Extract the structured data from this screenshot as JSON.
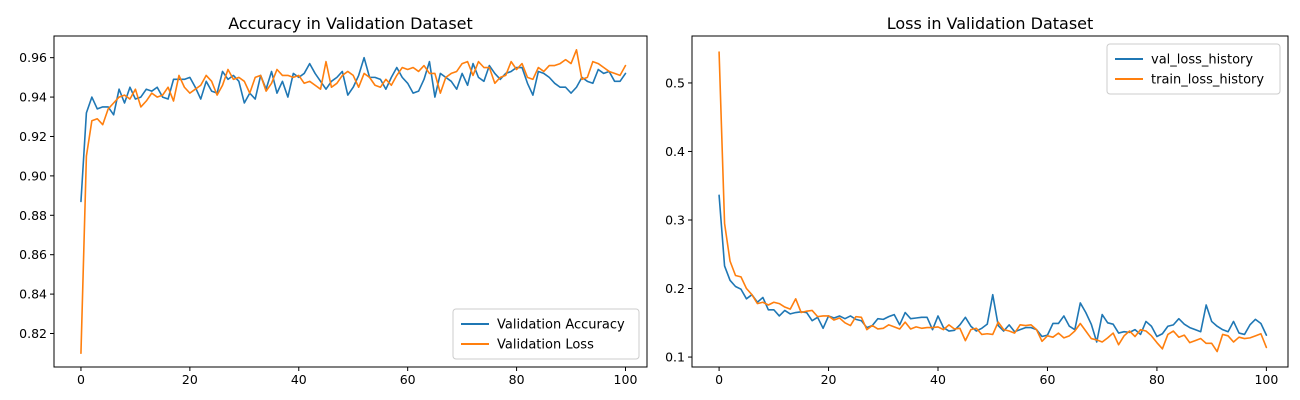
{
  "chart_data": [
    {
      "type": "line",
      "title": "Accuracy in Validation Dataset",
      "xlabel": "",
      "ylabel": "",
      "xlim": [
        -4.95,
        103.95
      ],
      "ylim": [
        0.803,
        0.971
      ],
      "xticks": [
        0,
        20,
        40,
        60,
        80,
        100
      ],
      "yticks": [
        0.82,
        0.84,
        0.86,
        0.88,
        0.9,
        0.92,
        0.94,
        0.96
      ],
      "ytick_labels": [
        "0.82",
        "0.84",
        "0.86",
        "0.88",
        "0.90",
        "0.92",
        "0.94",
        "0.96"
      ],
      "grid": false,
      "legend": "lower-right",
      "series": [
        {
          "name": "Validation Accuracy",
          "color": "#1f77b4",
          "values": [
            0.887,
            0.932,
            0.94,
            0.934,
            0.935,
            0.935,
            0.931,
            0.944,
            0.937,
            0.945,
            0.939,
            0.94,
            0.944,
            0.943,
            0.945,
            0.94,
            0.939,
            0.949,
            0.949,
            0.949,
            0.95,
            0.945,
            0.939,
            0.948,
            0.943,
            0.942,
            0.953,
            0.949,
            0.951,
            0.948,
            0.937,
            0.942,
            0.939,
            0.951,
            0.944,
            0.953,
            0.942,
            0.948,
            0.94,
            0.952,
            0.95,
            0.952,
            0.957,
            0.952,
            0.948,
            0.944,
            0.948,
            0.95,
            0.953,
            0.941,
            0.945,
            0.951,
            0.96,
            0.95,
            0.95,
            0.949,
            0.944,
            0.95,
            0.955,
            0.95,
            0.947,
            0.942,
            0.943,
            0.949,
            0.958,
            0.94,
            0.952,
            0.95,
            0.948,
            0.944,
            0.952,
            0.946,
            0.957,
            0.95,
            0.948,
            0.956,
            0.952,
            0.949,
            0.952,
            0.953,
            0.955,
            0.955,
            0.947,
            0.941,
            0.953,
            0.952,
            0.95,
            0.947,
            0.945,
            0.945,
            0.942,
            0.945,
            0.95,
            0.948,
            0.947,
            0.954,
            0.952,
            0.953,
            0.948,
            0.948,
            0.952
          ]
        },
        {
          "name": "Validation Loss",
          "color": "#ff7f0e",
          "values": [
            0.81,
            0.91,
            0.928,
            0.929,
            0.926,
            0.934,
            0.937,
            0.94,
            0.941,
            0.939,
            0.944,
            0.935,
            0.938,
            0.942,
            0.94,
            0.941,
            0.945,
            0.938,
            0.951,
            0.945,
            0.942,
            0.944,
            0.946,
            0.951,
            0.948,
            0.941,
            0.946,
            0.954,
            0.949,
            0.95,
            0.948,
            0.942,
            0.95,
            0.951,
            0.943,
            0.947,
            0.954,
            0.951,
            0.951,
            0.95,
            0.951,
            0.947,
            0.948,
            0.946,
            0.944,
            0.958,
            0.945,
            0.947,
            0.951,
            0.953,
            0.951,
            0.945,
            0.952,
            0.95,
            0.946,
            0.945,
            0.949,
            0.946,
            0.951,
            0.955,
            0.954,
            0.955,
            0.953,
            0.956,
            0.952,
            0.952,
            0.942,
            0.95,
            0.952,
            0.953,
            0.957,
            0.958,
            0.951,
            0.958,
            0.955,
            0.955,
            0.947,
            0.95,
            0.951,
            0.958,
            0.954,
            0.957,
            0.95,
            0.949,
            0.955,
            0.953,
            0.956,
            0.956,
            0.957,
            0.959,
            0.957,
            0.964,
            0.949,
            0.95,
            0.958,
            0.957,
            0.955,
            0.953,
            0.952,
            0.951,
            0.956
          ]
        }
      ]
    },
    {
      "type": "line",
      "title": "Loss in Validation Dataset",
      "xlabel": "",
      "ylabel": "",
      "xlim": [
        -4.95,
        103.95
      ],
      "ylim": [
        0.0855,
        0.5685
      ],
      "xticks": [
        0,
        20,
        40,
        60,
        80,
        100
      ],
      "yticks": [
        0.1,
        0.2,
        0.3,
        0.4,
        0.5
      ],
      "ytick_labels": [
        "0.1",
        "0.2",
        "0.3",
        "0.4",
        "0.5"
      ],
      "grid": false,
      "legend": "top-right",
      "series": [
        {
          "name": "val_loss_history",
          "color": "#1f77b4",
          "values": [
            0.336,
            0.233,
            0.212,
            0.203,
            0.199,
            0.185,
            0.191,
            0.18,
            0.187,
            0.169,
            0.169,
            0.16,
            0.168,
            0.163,
            0.165,
            0.166,
            0.165,
            0.153,
            0.158,
            0.142,
            0.16,
            0.157,
            0.16,
            0.156,
            0.16,
            0.155,
            0.153,
            0.143,
            0.146,
            0.156,
            0.155,
            0.159,
            0.162,
            0.147,
            0.165,
            0.156,
            0.157,
            0.158,
            0.158,
            0.14,
            0.16,
            0.143,
            0.138,
            0.139,
            0.147,
            0.158,
            0.145,
            0.138,
            0.142,
            0.148,
            0.191,
            0.146,
            0.138,
            0.147,
            0.137,
            0.14,
            0.143,
            0.143,
            0.14,
            0.13,
            0.132,
            0.149,
            0.149,
            0.16,
            0.145,
            0.14,
            0.179,
            0.165,
            0.148,
            0.122,
            0.162,
            0.15,
            0.148,
            0.135,
            0.137,
            0.136,
            0.14,
            0.133,
            0.152,
            0.145,
            0.13,
            0.134,
            0.145,
            0.147,
            0.156,
            0.148,
            0.143,
            0.14,
            0.137,
            0.176,
            0.152,
            0.145,
            0.14,
            0.137,
            0.152,
            0.135,
            0.133,
            0.147,
            0.155,
            0.149,
            0.132
          ]
        },
        {
          "name": "train_loss_history",
          "color": "#ff7f0e",
          "values": [
            0.545,
            0.295,
            0.24,
            0.219,
            0.217,
            0.2,
            0.191,
            0.178,
            0.18,
            0.176,
            0.18,
            0.178,
            0.173,
            0.17,
            0.185,
            0.165,
            0.167,
            0.168,
            0.159,
            0.16,
            0.16,
            0.154,
            0.157,
            0.15,
            0.146,
            0.159,
            0.158,
            0.14,
            0.146,
            0.141,
            0.142,
            0.147,
            0.144,
            0.141,
            0.151,
            0.141,
            0.144,
            0.142,
            0.143,
            0.143,
            0.144,
            0.14,
            0.147,
            0.141,
            0.142,
            0.124,
            0.14,
            0.142,
            0.133,
            0.134,
            0.133,
            0.151,
            0.14,
            0.138,
            0.135,
            0.147,
            0.146,
            0.147,
            0.14,
            0.123,
            0.131,
            0.129,
            0.135,
            0.128,
            0.131,
            0.138,
            0.149,
            0.138,
            0.127,
            0.125,
            0.122,
            0.128,
            0.135,
            0.118,
            0.131,
            0.138,
            0.13,
            0.14,
            0.138,
            0.131,
            0.121,
            0.112,
            0.133,
            0.138,
            0.129,
            0.132,
            0.121,
            0.124,
            0.127,
            0.12,
            0.12,
            0.108,
            0.133,
            0.131,
            0.122,
            0.129,
            0.127,
            0.128,
            0.131,
            0.134,
            0.114
          ]
        }
      ]
    }
  ]
}
